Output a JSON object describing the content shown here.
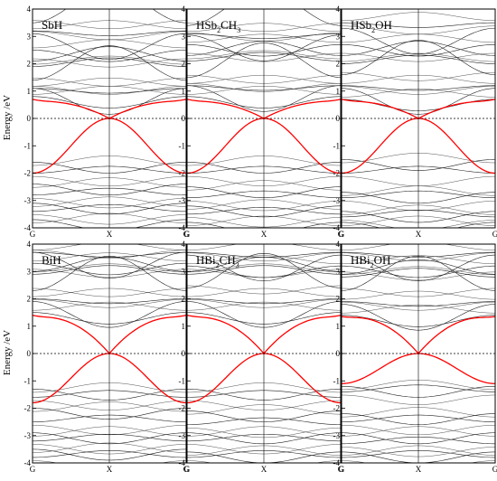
{
  "chart_data": [
    {
      "type": "line",
      "ylabel": "Energy /eV",
      "ylim": [
        -4,
        4
      ],
      "yticks": [
        "4",
        "3",
        "2",
        "1",
        "0",
        "-1",
        "-2",
        "-3",
        "-4"
      ],
      "xticks": [
        "G",
        "X",
        "G"
      ],
      "fermi_level": 0,
      "dashed_fermi_line": true,
      "highlight_color": "#ff0000",
      "band_color": "#222222",
      "panels": [
        {
          "row": 0,
          "col": 0,
          "label": {
            "base": "SbH",
            "parts": []
          },
          "red_bands": {
            "cb_edge": 0.6,
            "cb_gamma": 0.7,
            "vb_gamma": -2.0
          },
          "conduction": [
            0.9,
            1.0,
            1.2,
            1.5,
            1.8,
            2.2,
            2.6,
            3.0,
            3.3,
            3.6
          ],
          "valence": [
            -1.6,
            -2.0,
            -2.4,
            -2.8,
            -3.1,
            -3.4,
            -3.7
          ]
        },
        {
          "row": 0,
          "col": 1,
          "label": {
            "base": "HSb",
            "parts": [
              {
                "sub": "2"
              },
              {
                "text": "CH"
              },
              {
                "sub": "3"
              }
            ]
          },
          "red_bands": {
            "cb_edge": 0.6,
            "cb_gamma": 0.7,
            "vb_gamma": -2.0
          },
          "conduction": [
            0.9,
            1.1,
            1.3,
            1.6,
            2.0,
            2.4,
            2.8,
            2.95,
            3.2,
            3.5
          ],
          "valence": [
            -1.6,
            -2.0,
            -2.5,
            -2.9,
            -3.2,
            -3.5,
            -3.8
          ]
        },
        {
          "row": 0,
          "col": 2,
          "label": {
            "base": "HSb",
            "parts": [
              {
                "sub": "2"
              },
              {
                "text": "OH"
              }
            ]
          },
          "red_bands": {
            "cb_edge": 0.6,
            "cb_gamma": 0.7,
            "vb_gamma": -2.0
          },
          "conduction": [
            0.8,
            1.0,
            1.3,
            1.7,
            1.9,
            2.4,
            2.8,
            3.2,
            3.6
          ],
          "valence": [
            -1.5,
            -2.0,
            -2.7,
            -2.9,
            -3.4,
            -3.6,
            -3.8
          ]
        },
        {
          "row": 1,
          "col": 0,
          "label": {
            "base": "BiH",
            "parts": []
          },
          "red_bands": {
            "cb_edge": 1.3,
            "cb_gamma": 1.4,
            "vb_gamma": -1.8
          },
          "conduction": [
            1.6,
            1.8,
            2.1,
            2.4,
            2.8,
            3.1,
            3.4,
            3.6,
            3.8
          ],
          "valence": [
            -1.3,
            -1.6,
            -2.0,
            -2.5,
            -2.9,
            -3.2,
            -3.5,
            -3.8
          ]
        },
        {
          "row": 1,
          "col": 1,
          "label": {
            "base": "HBi",
            "parts": [
              {
                "sub": "2"
              },
              {
                "text": "CH"
              },
              {
                "sub": "3"
              }
            ]
          },
          "red_bands": {
            "cb_edge": 1.3,
            "cb_gamma": 1.4,
            "vb_gamma": -1.8
          },
          "conduction": [
            1.6,
            1.8,
            2.1,
            2.5,
            2.8,
            3.1,
            3.3,
            3.5,
            3.8
          ],
          "valence": [
            -1.3,
            -1.6,
            -2.1,
            -2.6,
            -2.9,
            -3.2,
            -3.6,
            -3.8
          ]
        },
        {
          "row": 1,
          "col": 2,
          "label": {
            "base": "HBi",
            "parts": [
              {
                "sub": "2"
              },
              {
                "text": "OH"
              }
            ]
          },
          "red_bands": {
            "cb_edge": 1.3,
            "cb_gamma": 1.35,
            "vb_gamma": -1.1
          },
          "conduction": [
            1.5,
            1.7,
            2.0,
            2.4,
            2.7,
            3.0,
            3.3,
            3.5,
            3.8
          ],
          "valence": [
            -1.2,
            -1.4,
            -2.2,
            -2.5,
            -2.9,
            -3.3,
            -3.6,
            -3.8
          ]
        }
      ]
    }
  ]
}
